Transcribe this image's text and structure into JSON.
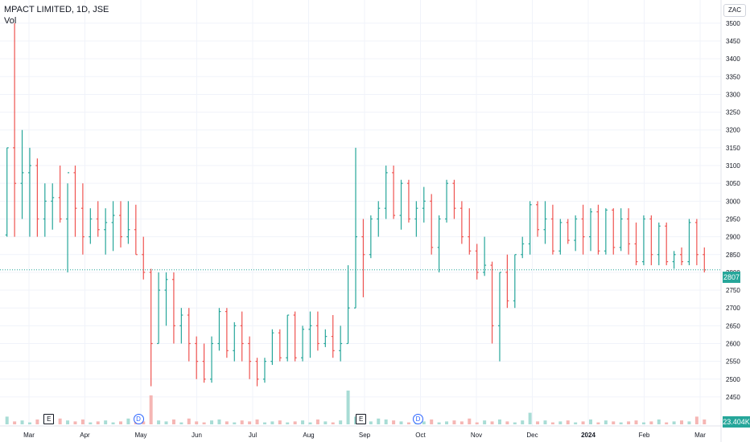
{
  "header": {
    "title": "MPACT LIMITED, 1D, JSE",
    "volume_label": "Vol"
  },
  "currency": "ZAC",
  "last_price_tag": "2807",
  "volume_tag": "23.404K",
  "colors": {
    "up": "#26a69a",
    "down": "#ef5350",
    "grid": "#f0f3fa",
    "axis_text": "#131722"
  },
  "events": [
    {
      "type": "earnings",
      "symbol": "E",
      "month_index": 0.35
    },
    {
      "type": "dividend",
      "symbol": "D",
      "month_index": 1.95
    },
    {
      "type": "earnings",
      "symbol": "E",
      "month_index": 5.93
    },
    {
      "type": "dividend",
      "symbol": "D",
      "month_index": 6.95
    }
  ],
  "chart_data": {
    "type": "bar",
    "title": "MPACT LIMITED, 1D, JSE",
    "y_ticks": [
      2450,
      2500,
      2550,
      2600,
      2650,
      2700,
      2750,
      2800,
      2850,
      2900,
      2950,
      3000,
      3050,
      3100,
      3150,
      3200,
      3250,
      3300,
      3350,
      3400,
      3450,
      3500
    ],
    "ylim": [
      2425,
      3520
    ],
    "x_ticks": [
      "Mar",
      "Apr",
      "May",
      "Jun",
      "Jul",
      "Aug",
      "Sep",
      "Oct",
      "Nov",
      "Dec",
      "2024",
      "Feb",
      "Mar"
    ],
    "last_price": 2807,
    "grid": true,
    "series": [
      {
        "name": "Price",
        "values": [
          [
            2905,
            3150,
            2900,
            3150
          ],
          [
            3150,
            3500,
            2900,
            3050
          ],
          [
            3050,
            3200,
            2950,
            3080
          ],
          [
            3080,
            3150,
            2900,
            3100
          ],
          [
            3100,
            3120,
            2900,
            2950
          ],
          [
            2950,
            3050,
            2900,
            3000
          ],
          [
            3000,
            3050,
            2920,
            3010
          ],
          [
            3010,
            3100,
            2940,
            2950
          ],
          [
            2950,
            3050,
            2800,
            3080
          ],
          [
            3080,
            3100,
            2900,
            2980
          ],
          [
            2980,
            3050,
            2850,
            2900
          ],
          [
            2900,
            2980,
            2880,
            2950
          ],
          [
            2950,
            3000,
            2900,
            2920
          ],
          [
            2920,
            2980,
            2850,
            2940
          ],
          [
            2940,
            3000,
            2860,
            2960
          ],
          [
            2960,
            3000,
            2870,
            2900
          ],
          [
            2900,
            3000,
            2880,
            2920
          ],
          [
            2920,
            2990,
            2850,
            2850
          ],
          [
            2850,
            2900,
            2780,
            2800
          ],
          [
            2800,
            2810,
            2480,
            2600
          ],
          [
            2600,
            2800,
            2600,
            2750
          ],
          [
            2750,
            2800,
            2650,
            2780
          ],
          [
            2780,
            2800,
            2600,
            2650
          ],
          [
            2650,
            2700,
            2600,
            2680
          ],
          [
            2680,
            2700,
            2550,
            2600
          ],
          [
            2600,
            2620,
            2500,
            2550
          ],
          [
            2550,
            2600,
            2490,
            2500
          ],
          [
            2500,
            2620,
            2490,
            2600
          ],
          [
            2600,
            2700,
            2580,
            2690
          ],
          [
            2690,
            2700,
            2560,
            2580
          ],
          [
            2580,
            2660,
            2550,
            2650
          ],
          [
            2650,
            2690,
            2550,
            2600
          ],
          [
            2600,
            2620,
            2500,
            2550
          ],
          [
            2550,
            2560,
            2480,
            2500
          ],
          [
            2500,
            2560,
            2490,
            2550
          ],
          [
            2550,
            2640,
            2540,
            2630
          ],
          [
            2630,
            2640,
            2550,
            2560
          ],
          [
            2560,
            2680,
            2550,
            2680
          ],
          [
            2680,
            2690,
            2550,
            2560
          ],
          [
            2560,
            2650,
            2550,
            2640
          ],
          [
            2640,
            2690,
            2560,
            2650
          ],
          [
            2650,
            2690,
            2580,
            2600
          ],
          [
            2600,
            2640,
            2590,
            2620
          ],
          [
            2620,
            2680,
            2560,
            2580
          ],
          [
            2580,
            2650,
            2550,
            2600
          ],
          [
            2600,
            2820,
            2600,
            2700
          ],
          [
            2700,
            3150,
            2700,
            2900
          ],
          [
            2900,
            2950,
            2730,
            2850
          ],
          [
            2850,
            2960,
            2840,
            2950
          ],
          [
            2950,
            3000,
            2900,
            2980
          ],
          [
            2980,
            3100,
            2950,
            3080
          ],
          [
            3080,
            3100,
            2950,
            2960
          ],
          [
            2960,
            3060,
            2920,
            3050
          ],
          [
            3050,
            3060,
            2940,
            2950
          ],
          [
            2950,
            3000,
            2900,
            2980
          ],
          [
            2980,
            3040,
            2940,
            3000
          ],
          [
            3000,
            3020,
            2850,
            2870
          ],
          [
            2870,
            2960,
            2800,
            2950
          ],
          [
            2950,
            3060,
            2940,
            3050
          ],
          [
            3050,
            3060,
            2950,
            2980
          ],
          [
            2980,
            3000,
            2880,
            2900
          ],
          [
            2900,
            2980,
            2850,
            2860
          ],
          [
            2860,
            2880,
            2780,
            2800
          ],
          [
            2800,
            2900,
            2790,
            2820
          ],
          [
            2820,
            2830,
            2600,
            2650
          ],
          [
            2650,
            2800,
            2550,
            2800
          ],
          [
            2800,
            2850,
            2700,
            2720
          ],
          [
            2720,
            2850,
            2700,
            2850
          ],
          [
            2850,
            2900,
            2840,
            2880
          ],
          [
            2880,
            3000,
            2850,
            2990
          ],
          [
            2990,
            3000,
            2900,
            2920
          ],
          [
            2920,
            3000,
            2880,
            2950
          ],
          [
            2950,
            2990,
            2850,
            2860
          ],
          [
            2860,
            2950,
            2850,
            2940
          ],
          [
            2940,
            2950,
            2880,
            2890
          ],
          [
            2890,
            2960,
            2860,
            2950
          ],
          [
            2950,
            2990,
            2850,
            2900
          ],
          [
            2900,
            2980,
            2860,
            2970
          ],
          [
            2970,
            2990,
            2850,
            2860
          ],
          [
            2860,
            2980,
            2850,
            2975
          ],
          [
            2975,
            2980,
            2850,
            2870
          ],
          [
            2870,
            2980,
            2860,
            2950
          ],
          [
            2950,
            2980,
            2850,
            2880
          ],
          [
            2880,
            2940,
            2820,
            2830
          ],
          [
            2830,
            2960,
            2820,
            2950
          ],
          [
            2950,
            2960,
            2820,
            2850
          ],
          [
            2850,
            2940,
            2820,
            2930
          ],
          [
            2930,
            2940,
            2820,
            2830
          ],
          [
            2830,
            2860,
            2810,
            2850
          ],
          [
            2850,
            2870,
            2820,
            2830
          ],
          [
            2830,
            2950,
            2820,
            2940
          ],
          [
            2940,
            2950,
            2820,
            2850
          ],
          [
            2850,
            2870,
            2800,
            2807
          ]
        ]
      }
    ],
    "volumes": [
      8,
      3,
      4,
      2,
      5,
      3,
      2,
      6,
      4,
      3,
      5,
      2,
      3,
      4,
      2,
      3,
      6,
      4,
      3,
      30,
      4,
      3,
      5,
      2,
      6,
      3,
      2,
      4,
      5,
      3,
      2,
      4,
      3,
      5,
      2,
      3,
      4,
      2,
      3,
      4,
      2,
      5,
      3,
      2,
      4,
      35,
      8,
      4,
      3,
      6,
      5,
      4,
      3,
      2,
      4,
      3,
      5,
      2,
      3,
      4,
      3,
      6,
      2,
      4,
      3,
      5,
      3,
      2,
      4,
      12,
      3,
      4,
      2,
      3,
      4,
      2,
      3,
      5,
      2,
      4,
      3,
      2,
      3,
      4,
      2,
      3,
      5,
      2,
      3,
      4,
      3,
      8,
      5
    ]
  }
}
